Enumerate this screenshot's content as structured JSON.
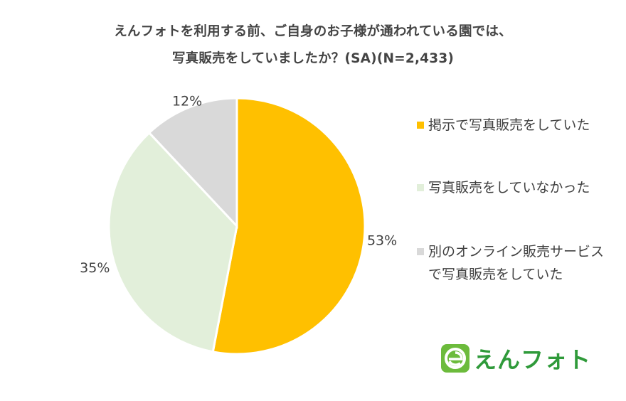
{
  "title": {
    "line1": "えんフォトを利用する前、ご自身のお子様が通われている園では、",
    "line2": "写真販売をしていましたか？(SA)(N=2,433)"
  },
  "colors": {
    "slice1": "#FFC000",
    "slice2": "#E2EFDA",
    "slice3": "#D9D9D9",
    "label_text": "#404040",
    "logo_green": "#6cbb3c"
  },
  "chart_data": {
    "type": "pie",
    "title": "えんフォトを利用する前、ご自身のお子様が通われている園では、写真販売をしていましたか？(SA)(N=2,433)",
    "categories": [
      "掲示で写真販売をしていた",
      "写真販売をしていなかった",
      "別のオンライン販売サービス\nで写真販売をしていた"
    ],
    "values": [
      53,
      35,
      12
    ],
    "value_labels": [
      "53%",
      "35%",
      "12%"
    ],
    "legend_position": "right",
    "start_angle": "12 o'clock",
    "direction": "clockwise"
  },
  "logo": {
    "text": "えんフォト",
    "mark_letter": "e"
  }
}
